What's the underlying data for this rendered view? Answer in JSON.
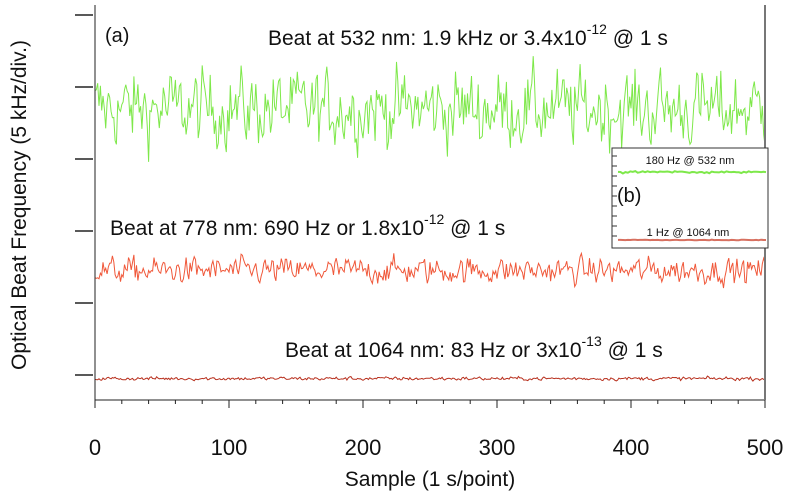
{
  "chart_data": {
    "type": "line",
    "panel_label": "(a)",
    "xlabel": "Sample (1 s/point)",
    "ylabel": "Optical Beat Frequency (5 kHz/div.)",
    "xlim": [
      0,
      500
    ],
    "xticks": [
      0,
      100,
      200,
      300,
      400,
      500
    ],
    "ylim_divisions": [
      -1,
      5.3
    ],
    "grid": false,
    "series": [
      {
        "annotation": "Beat at 532 nm: 1.9 kHz or 3.4x10",
        "exponent": "-12",
        "annotation_suffix": "@ 1 s",
        "color": "#7ee84a",
        "offset_div": 3.7,
        "noise_amplitude_div": 0.38,
        "n_points": 500
      },
      {
        "annotation": "Beat at 778 nm: 690 Hz or 1.8x10",
        "exponent": "-12",
        "annotation_suffix": "@ 1 s",
        "color": "#f0583a",
        "offset_div": 1.45,
        "noise_amplitude_div": 0.13,
        "n_points": 500
      },
      {
        "annotation": "Beat at 1064 nm: 83 Hz or 3x10",
        "exponent": "-13",
        "annotation_suffix": "@ 1 s",
        "color": "#b8301e",
        "offset_div": -0.05,
        "noise_amplitude_div": 0.018,
        "n_points": 500
      }
    ],
    "inset": {
      "panel_label": "(b)",
      "series": [
        {
          "label": "180 Hz @ 532 nm",
          "color": "#7ee84a",
          "noise_amplitude": 0.6
        },
        {
          "label": "1 Hz @ 1064 nm",
          "color": "#d77060",
          "noise_amplitude": 0.15
        }
      ]
    }
  }
}
